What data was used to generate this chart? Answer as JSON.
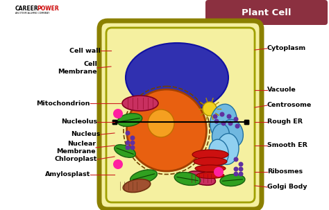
{
  "title": "Plant Cell",
  "title_bg": "#8B3040",
  "title_color": "white",
  "bg_color": "white",
  "cell_bg": "#F5F0A0",
  "cell_outline": "#8B8000",
  "cell_outline2": "#C8C800",
  "vacuole_color": "#3030B0",
  "vacuole_edge": "#1010A0",
  "nucleus_color": "#E86010",
  "nucleus_edge": "#A04000",
  "nucleolus_color": "#F5A020",
  "nucleolus_edge": "#C07000",
  "mitochondria_color": "#C83060",
  "mitochondria_edge": "#800020",
  "chloroplast_color": "#30A020",
  "chloroplast_edge": "#1A6010",
  "amyloplast_color": "#A05030",
  "amyloplast_edge": "#703010",
  "centrosome_color": "#F0D020",
  "centrosome_edge": "#B09000",
  "rough_er_color": "#70B8E0",
  "rough_er_edge": "#2070A0",
  "smooth_er_color": "#90D0F0",
  "smooth_er_edge": "#2070A0",
  "golgi_color": "#CC1010",
  "golgi_edge": "#880000",
  "purple_dot": "#6030A0",
  "pink_dot": "#FF20A0",
  "label_line_color": "#CC2020",
  "black_line_color": "#000000",
  "logo_text": "CAREER POWER",
  "logo_sub": "AN IITISM ALUMNI COMPANY"
}
